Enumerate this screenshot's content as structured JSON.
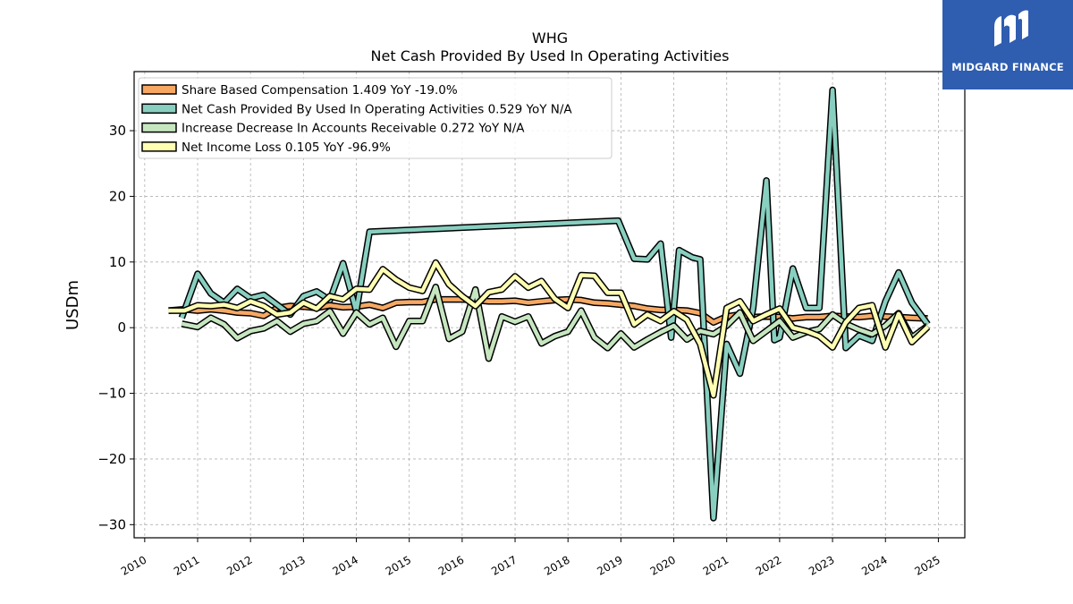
{
  "logo": {
    "text": "MIDGARD FINANCE"
  },
  "chart_data": {
    "type": "line",
    "title": "WHG",
    "subtitle": "Net Cash Provided By Used In Operating Activities",
    "ylabel": "USDm",
    "xlabel": "",
    "xlim": [
      2009.8,
      2025.5
    ],
    "ylim": [
      -32,
      39
    ],
    "grid": true,
    "legend_position": "top-left",
    "yticks": [
      30,
      20,
      10,
      0,
      -10,
      -20,
      -30
    ],
    "ytick_labels": [
      "30",
      "20",
      "10",
      "0",
      "−10",
      "−20",
      "−30"
    ],
    "xticks": [
      2010,
      2011,
      2012,
      2013,
      2014,
      2015,
      2016,
      2017,
      2018,
      2019,
      2020,
      2021,
      2022,
      2023,
      2024,
      2025
    ],
    "series": [
      {
        "name": "Share Based Compensation",
        "legend": "Share Based Compensation  1.409 YoY -19.0%",
        "color": "#f6a863",
        "points": [
          [
            2010.45,
            2.6
          ],
          [
            2010.75,
            2.8
          ],
          [
            2011.0,
            2.6
          ],
          [
            2011.25,
            2.8
          ],
          [
            2011.5,
            2.6
          ],
          [
            2011.75,
            2.3
          ],
          [
            2012.0,
            2.2
          ],
          [
            2012.25,
            1.8
          ],
          [
            2012.5,
            3.0
          ],
          [
            2012.75,
            3.3
          ],
          [
            2013.0,
            3.2
          ],
          [
            2013.25,
            3.0
          ],
          [
            2013.5,
            3.4
          ],
          [
            2013.75,
            3.1
          ],
          [
            2014.0,
            3.2
          ],
          [
            2014.25,
            3.5
          ],
          [
            2014.5,
            3.0
          ],
          [
            2014.75,
            3.8
          ],
          [
            2015.0,
            3.9
          ],
          [
            2015.25,
            3.9
          ],
          [
            2015.5,
            4.3
          ],
          [
            2015.75,
            4.3
          ],
          [
            2016.0,
            4.3
          ],
          [
            2016.25,
            4.2
          ],
          [
            2016.5,
            4.0
          ],
          [
            2016.75,
            4.0
          ],
          [
            2017.0,
            4.1
          ],
          [
            2017.25,
            3.8
          ],
          [
            2017.5,
            4.0
          ],
          [
            2017.75,
            4.2
          ],
          [
            2018.0,
            4.3
          ],
          [
            2018.25,
            4.2
          ],
          [
            2018.5,
            3.8
          ],
          [
            2018.75,
            3.7
          ],
          [
            2019.0,
            3.5
          ],
          [
            2019.25,
            3.3
          ],
          [
            2019.5,
            2.9
          ],
          [
            2019.75,
            2.7
          ],
          [
            2020.0,
            2.7
          ],
          [
            2020.25,
            2.6
          ],
          [
            2020.5,
            2.2
          ],
          [
            2020.75,
            0.8
          ],
          [
            2021.0,
            1.7
          ],
          [
            2021.25,
            2.0
          ],
          [
            2021.5,
            1.6
          ],
          [
            2021.75,
            1.7
          ],
          [
            2022.0,
            1.6
          ],
          [
            2022.25,
            1.4
          ],
          [
            2022.5,
            1.6
          ],
          [
            2022.75,
            1.6
          ],
          [
            2023.0,
            1.8
          ],
          [
            2023.25,
            1.7
          ],
          [
            2023.5,
            1.6
          ],
          [
            2023.75,
            1.8
          ],
          [
            2024.0,
            1.7
          ],
          [
            2024.25,
            1.6
          ],
          [
            2024.5,
            1.5
          ],
          [
            2024.8,
            1.4
          ]
        ]
      },
      {
        "name": "Net Cash Provided By Used In Operating Activities",
        "legend": "Net Cash Provided By Used In Operating Activities  0.529 YoY N/A",
        "color": "#88cfc0",
        "points": [
          [
            2010.7,
            1.5
          ],
          [
            2011.0,
            8.2
          ],
          [
            2011.25,
            5.2
          ],
          [
            2011.5,
            3.8
          ],
          [
            2011.75,
            5.9
          ],
          [
            2012.0,
            4.5
          ],
          [
            2012.25,
            5.0
          ],
          [
            2012.5,
            3.5
          ],
          [
            2012.75,
            2.0
          ],
          [
            2013.0,
            4.8
          ],
          [
            2013.25,
            5.5
          ],
          [
            2013.5,
            4.2
          ],
          [
            2013.75,
            9.8
          ],
          [
            2014.0,
            2.5
          ],
          [
            2014.25,
            14.6
          ],
          [
            2018.95,
            16.3
          ],
          [
            2019.25,
            10.5
          ],
          [
            2019.5,
            10.4
          ],
          [
            2019.75,
            12.8
          ],
          [
            2019.95,
            -1.5
          ],
          [
            2020.1,
            11.8
          ],
          [
            2020.35,
            10.7
          ],
          [
            2020.5,
            10.4
          ],
          [
            2020.75,
            -29.0
          ],
          [
            2021.0,
            -2.5
          ],
          [
            2021.25,
            -7.0
          ],
          [
            2021.5,
            3.0
          ],
          [
            2021.75,
            22.4
          ],
          [
            2021.9,
            -1.9
          ],
          [
            2022.0,
            -1.5
          ],
          [
            2022.25,
            9.0
          ],
          [
            2022.5,
            3.0
          ],
          [
            2022.75,
            3.0
          ],
          [
            2023.0,
            36.2
          ],
          [
            2023.25,
            -3.1
          ],
          [
            2023.5,
            -1.2
          ],
          [
            2023.75,
            -2.0
          ],
          [
            2024.0,
            4.0
          ],
          [
            2024.25,
            8.4
          ],
          [
            2024.5,
            3.8
          ],
          [
            2024.8,
            0.5
          ]
        ]
      },
      {
        "name": "Increase Decrease In Accounts Receivable",
        "legend": "Increase Decrease In Accounts Receivable  0.272 YoY N/A",
        "color": "#c6e6c0",
        "points": [
          [
            2010.7,
            0.6
          ],
          [
            2011.0,
            0.1
          ],
          [
            2011.25,
            1.5
          ],
          [
            2011.5,
            0.5
          ],
          [
            2011.75,
            -1.6
          ],
          [
            2012.0,
            -0.5
          ],
          [
            2012.25,
            -0.1
          ],
          [
            2012.5,
            1.0
          ],
          [
            2012.75,
            -0.6
          ],
          [
            2013.0,
            0.6
          ],
          [
            2013.25,
            1.0
          ],
          [
            2013.5,
            2.5
          ],
          [
            2013.75,
            -0.9
          ],
          [
            2014.0,
            2.3
          ],
          [
            2014.25,
            0.5
          ],
          [
            2014.5,
            1.5
          ],
          [
            2014.75,
            -2.9
          ],
          [
            2015.0,
            1.0
          ],
          [
            2015.25,
            1.0
          ],
          [
            2015.5,
            6.2
          ],
          [
            2015.75,
            -1.7
          ],
          [
            2016.0,
            -0.6
          ],
          [
            2016.25,
            5.8
          ],
          [
            2016.5,
            -4.7
          ],
          [
            2016.75,
            1.7
          ],
          [
            2017.0,
            0.9
          ],
          [
            2017.25,
            1.7
          ],
          [
            2017.5,
            -2.4
          ],
          [
            2017.75,
            -1.3
          ],
          [
            2018.0,
            -0.6
          ],
          [
            2018.25,
            2.6
          ],
          [
            2018.5,
            -1.5
          ],
          [
            2018.75,
            -3.1
          ],
          [
            2019.0,
            -0.9
          ],
          [
            2019.25,
            -3.0
          ],
          [
            2019.5,
            -1.8
          ],
          [
            2019.75,
            -0.7
          ],
          [
            2020.0,
            0.3
          ],
          [
            2020.25,
            -1.8
          ],
          [
            2020.5,
            -0.5
          ],
          [
            2020.75,
            -1.0
          ],
          [
            2021.0,
            0.3
          ],
          [
            2021.25,
            2.3
          ],
          [
            2021.5,
            -2.0
          ],
          [
            2021.75,
            -0.5
          ],
          [
            2022.0,
            1.0
          ],
          [
            2022.25,
            -1.5
          ],
          [
            2022.5,
            -0.7
          ],
          [
            2022.75,
            -0.2
          ],
          [
            2023.0,
            2.0
          ],
          [
            2023.25,
            0.6
          ],
          [
            2023.5,
            -0.3
          ],
          [
            2023.75,
            -1.0
          ],
          [
            2024.0,
            0.3
          ],
          [
            2024.25,
            2.2
          ],
          [
            2024.5,
            -1.5
          ],
          [
            2024.8,
            0.3
          ]
        ]
      },
      {
        "name": "Net Income Loss",
        "legend": "Net Income Loss  0.105 YoY -96.9%",
        "color": "#ffffb3",
        "points": [
          [
            2010.45,
            2.6
          ],
          [
            2010.75,
            2.6
          ],
          [
            2011.0,
            3.4
          ],
          [
            2011.25,
            3.3
          ],
          [
            2011.5,
            3.5
          ],
          [
            2011.75,
            3.0
          ],
          [
            2012.0,
            4.0
          ],
          [
            2012.25,
            3.3
          ],
          [
            2012.5,
            2.0
          ],
          [
            2012.75,
            2.3
          ],
          [
            2013.0,
            3.8
          ],
          [
            2013.25,
            2.9
          ],
          [
            2013.5,
            4.8
          ],
          [
            2013.75,
            4.3
          ],
          [
            2014.0,
            5.9
          ],
          [
            2014.25,
            5.8
          ],
          [
            2014.5,
            8.9
          ],
          [
            2014.75,
            7.3
          ],
          [
            2015.0,
            6.1
          ],
          [
            2015.25,
            5.6
          ],
          [
            2015.5,
            9.9
          ],
          [
            2015.75,
            6.6
          ],
          [
            2016.0,
            4.8
          ],
          [
            2016.25,
            3.3
          ],
          [
            2016.5,
            5.4
          ],
          [
            2016.75,
            5.8
          ],
          [
            2017.0,
            7.8
          ],
          [
            2017.25,
            6.1
          ],
          [
            2017.5,
            7.1
          ],
          [
            2017.75,
            4.4
          ],
          [
            2018.0,
            3.0
          ],
          [
            2018.25,
            8.0
          ],
          [
            2018.5,
            7.9
          ],
          [
            2018.75,
            5.3
          ],
          [
            2019.0,
            5.3
          ],
          [
            2019.25,
            0.5
          ],
          [
            2019.5,
            2.0
          ],
          [
            2019.75,
            1.0
          ],
          [
            2020.0,
            2.5
          ],
          [
            2020.25,
            1.2
          ],
          [
            2020.5,
            -2.5
          ],
          [
            2020.75,
            -10.3
          ],
          [
            2021.0,
            3.0
          ],
          [
            2021.25,
            4.0
          ],
          [
            2021.5,
            1.0
          ],
          [
            2021.75,
            2.0
          ],
          [
            2022.0,
            2.9
          ],
          [
            2022.25,
            0.0
          ],
          [
            2022.5,
            -0.5
          ],
          [
            2022.75,
            -1.3
          ],
          [
            2023.0,
            -3.0
          ],
          [
            2023.25,
            0.8
          ],
          [
            2023.5,
            3.0
          ],
          [
            2023.75,
            3.4
          ],
          [
            2024.0,
            -3.0
          ],
          [
            2024.25,
            2.1
          ],
          [
            2024.5,
            -2.2
          ],
          [
            2024.8,
            0.1
          ]
        ]
      }
    ]
  }
}
